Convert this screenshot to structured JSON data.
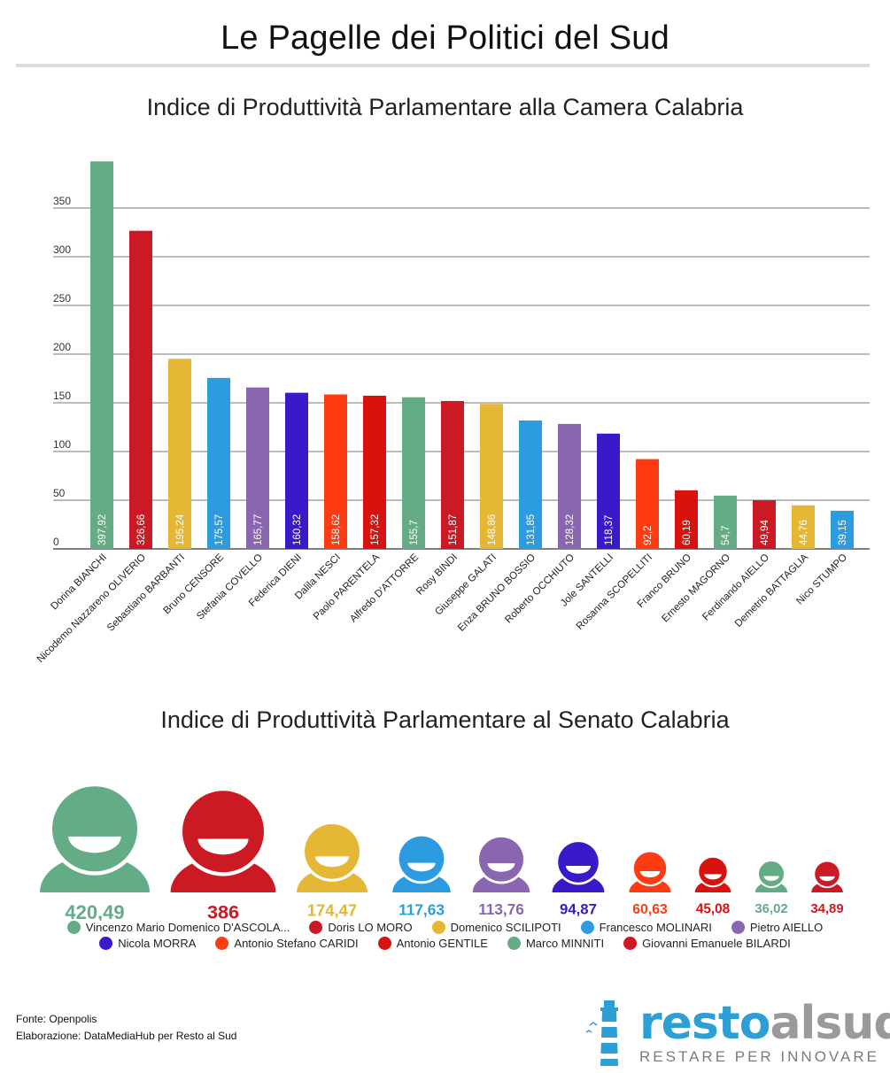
{
  "page": {
    "title": "Le Pagelle dei Politici del Sud"
  },
  "colors": {
    "green": "#63ac86",
    "red": "#cc1a24",
    "yellow": "#e6b635",
    "blue": "#2c9be0",
    "purple": "#8a65b0",
    "indigo": "#3a19c8",
    "orange": "#ff3b12",
    "deepred": "#d8120f",
    "grid": "#7a7a7a",
    "logo_blue": "#2d9fd5",
    "logo_grey": "#9a9a9a"
  },
  "chart_data": [
    {
      "type": "bar",
      "title": "Indice di Produttività Parlamentare alla Camera Calabria",
      "ylim": [
        0,
        400
      ],
      "yticks": [
        "350",
        "300",
        "250",
        "200",
        "150",
        "100",
        "50",
        "0"
      ],
      "grid": true,
      "categories": [
        "Dorina BIANCHI",
        "Nicodemo Nazzareno OLIVERIO",
        "Sebastiano BARBANTI",
        "Bruno CENSORE",
        "Stefania COVELLO",
        "Federica DIENI",
        "Dalila NESCI",
        "Paolo PARENTELA",
        "Alfredo D'ATTORRE",
        "Rosy BINDI",
        "Giuseppe GALATI",
        "Enza BRUNO BOSSIO",
        "Roberto OCCHIUTO",
        "Jole SANTELLI",
        "Rosanna SCOPELLITI",
        "Franco BRUNO",
        "Ernesto MAGORNO",
        "Ferdinando AIELLO",
        "Demetrio BATTAGLIA",
        "Nico STUMPO"
      ],
      "values": [
        397.92,
        326.66,
        195.24,
        175.57,
        165.77,
        160.32,
        158.62,
        157.32,
        155.7,
        151.87,
        148.86,
        131.85,
        128.32,
        118.37,
        92.2,
        60.19,
        54.7,
        49.94,
        44.76,
        39.15
      ],
      "labels": [
        "397,92",
        "326,66",
        "195,24",
        "175,57",
        "165,77",
        "160,32",
        "158,62",
        "157,32",
        "155,7",
        "151,87",
        "148,86",
        "131,85",
        "128,32",
        "118,37",
        "92,2",
        "60,19",
        "54,7",
        "49,94",
        "44,76",
        "39,15"
      ],
      "bar_colors": [
        "#63ac86",
        "#cc1a24",
        "#e6b635",
        "#2c9be0",
        "#8a65b0",
        "#3a19c8",
        "#ff3b12",
        "#d8120f",
        "#63ac86",
        "#cc1a24",
        "#e6b635",
        "#2c9be0",
        "#8a65b0",
        "#3a19c8",
        "#ff3b12",
        "#d8120f",
        "#63ac86",
        "#cc1a24",
        "#e6b635",
        "#2c9be0"
      ]
    },
    {
      "type": "pictogram",
      "title": "Indice di Produttività Parlamentare al Senato Calabria",
      "categories": [
        "Vincenzo Mario Domenico D'ASCOLA...",
        "Doris LO MORO",
        "Domenico SCILIPOTI",
        "Francesco MOLINARI",
        "Pietro AIELLO",
        "Nicola MORRA",
        "Antonio Stefano CARIDI",
        "Antonio GENTILE",
        "Marco MINNITI",
        "Giovanni Emanuele BILARDI"
      ],
      "values": [
        420.49,
        386,
        174.47,
        117.63,
        113.76,
        94.87,
        60.63,
        45.08,
        36.02,
        34.89
      ],
      "labels": [
        "420,49",
        "386",
        "174,47",
        "117,63",
        "113,76",
        "94,87",
        "60,63",
        "45,08",
        "36,02",
        "34,89"
      ],
      "colors": [
        "#63ac86",
        "#cc1a24",
        "#e6b635",
        "#2c9be0",
        "#8a65b0",
        "#3a19c8",
        "#ff3b12",
        "#d8120f",
        "#63ac86",
        "#cc1a24"
      ],
      "legend_position": "bottom"
    }
  ],
  "footer": {
    "source": "Fonte: Openpolis",
    "credit": "Elaborazione: DataMediaHub per Resto al Sud"
  },
  "logo": {
    "word_a": "resto",
    "word_b": "alsud",
    "tagline": "RESTARE PER INNOVARE",
    "icon": "lighthouse-icon"
  }
}
